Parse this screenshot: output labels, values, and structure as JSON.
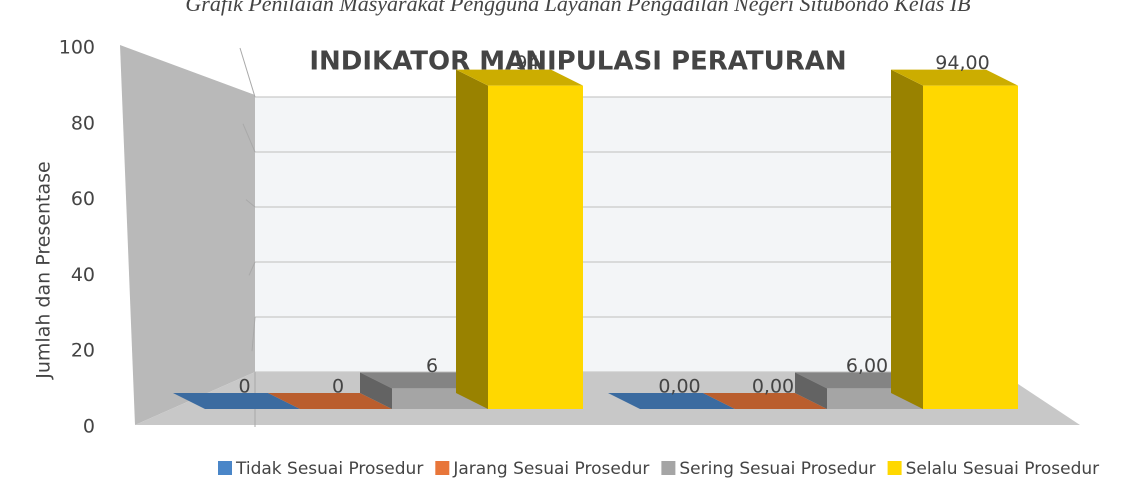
{
  "chart_data": {
    "type": "bar3d",
    "caption": "Grafik Penilaian Masyarakat Pengguna Layanan Pengadilan Negeri Situbondo Kelas IB",
    "title": "INDIKATOR MANIPULASI PERATURAN",
    "y_label": "Jumlah dan Presentase",
    "categories": [
      null,
      null
    ],
    "series": [
      {
        "name": "Tidak Sesuai Prosedur",
        "color": "#4a86c8",
        "values": [
          0,
          0
        ],
        "value_labels": [
          "0",
          "0,00"
        ]
      },
      {
        "name": "Jarang Sesuai Prosedur",
        "color": "#e8763a",
        "values": [
          0,
          0
        ],
        "value_labels": [
          "0",
          "0,00"
        ]
      },
      {
        "name": "Sering Sesuai Prosedur",
        "color": "#a5a5a5",
        "values": [
          6,
          6
        ],
        "value_labels": [
          "6",
          "6,00"
        ]
      },
      {
        "name": "Selalu Sesuai Prosedur",
        "color": "#ffd800",
        "values": [
          94,
          94
        ],
        "value_labels": [
          "94",
          "94,00"
        ]
      }
    ],
    "ylim": [
      0,
      100
    ],
    "yticks": [
      0,
      20,
      40,
      60,
      80,
      100
    ],
    "grid": true,
    "legend": "bottom"
  }
}
